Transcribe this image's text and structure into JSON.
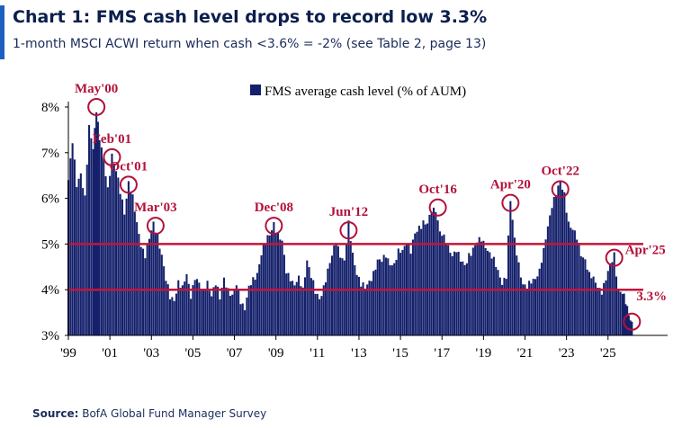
{
  "header": {
    "title": "Chart 1: FMS cash level drops to record low 3.3%",
    "subtitle": "1-month MSCI ACWI return when cash <3.6% = -2% (see Table 2, page 13)"
  },
  "footer": {
    "source_label": "Source:",
    "source_text": "BofA Global Fund Manager Survey"
  },
  "colors": {
    "bars": "#14206b",
    "threshold": "#c4143c",
    "annotation": "#b2123a",
    "accent": "#1f5fbf"
  },
  "chart_data": {
    "type": "bar",
    "legend": "FMS average cash level (% of AUM)",
    "legend_position": "top-center",
    "grid": false,
    "ylim": [
      3,
      8.5
    ],
    "y_ticks": [
      {
        "value": 3,
        "label": "3%"
      },
      {
        "value": 4,
        "label": "4%"
      },
      {
        "value": 5,
        "label": "5%"
      },
      {
        "value": 6,
        "label": "6%"
      },
      {
        "value": 7,
        "label": "7%"
      },
      {
        "value": 8,
        "label": "8%"
      }
    ],
    "xlim": [
      1999.0,
      2026.7
    ],
    "x_ticks": [
      {
        "value": 1999,
        "label": "'99"
      },
      {
        "value": 2001,
        "label": "'01"
      },
      {
        "value": 2003,
        "label": "'03"
      },
      {
        "value": 2005,
        "label": "'05"
      },
      {
        "value": 2007,
        "label": "'07"
      },
      {
        "value": 2009,
        "label": "'09"
      },
      {
        "value": 2011,
        "label": "'11"
      },
      {
        "value": 2013,
        "label": "'13"
      },
      {
        "value": 2015,
        "label": "'15"
      },
      {
        "value": 2017,
        "label": "'17"
      },
      {
        "value": 2019,
        "label": "'19"
      },
      {
        "value": 2021,
        "label": "'21"
      },
      {
        "value": 2023,
        "label": "'23"
      },
      {
        "value": 2025,
        "label": "'25"
      }
    ],
    "reference_lines": [
      5.0,
      4.0
    ],
    "series": [
      {
        "points": [
          [
            1999.0,
            6.4
          ],
          [
            1999.2,
            7.2
          ],
          [
            1999.4,
            6.3
          ],
          [
            1999.6,
            6.6
          ],
          [
            1999.8,
            6.0
          ],
          [
            2000.0,
            7.5
          ],
          [
            2000.2,
            7.1
          ],
          [
            2000.35,
            8.0
          ],
          [
            2000.5,
            7.3
          ],
          [
            2000.7,
            6.8
          ],
          [
            2000.9,
            6.2
          ],
          [
            2001.1,
            7.0
          ],
          [
            2001.3,
            6.6
          ],
          [
            2001.5,
            6.1
          ],
          [
            2001.7,
            5.7
          ],
          [
            2001.9,
            6.4
          ],
          [
            2002.1,
            6.0
          ],
          [
            2002.3,
            5.4
          ],
          [
            2002.5,
            5.0
          ],
          [
            2002.7,
            4.8
          ],
          [
            2002.9,
            5.1
          ],
          [
            2003.1,
            5.4
          ],
          [
            2003.3,
            5.2
          ],
          [
            2003.5,
            4.8
          ],
          [
            2003.7,
            4.2
          ],
          [
            2003.9,
            3.8
          ],
          [
            2004.1,
            3.8
          ],
          [
            2004.3,
            4.2
          ],
          [
            2004.5,
            4.0
          ],
          [
            2004.7,
            4.3
          ],
          [
            2004.9,
            3.9
          ],
          [
            2005.1,
            4.3
          ],
          [
            2005.3,
            4.1
          ],
          [
            2005.5,
            3.9
          ],
          [
            2005.7,
            4.2
          ],
          [
            2005.9,
            3.9
          ],
          [
            2006.1,
            4.1
          ],
          [
            2006.3,
            3.8
          ],
          [
            2006.5,
            4.3
          ],
          [
            2006.7,
            4.0
          ],
          [
            2006.9,
            3.8
          ],
          [
            2007.1,
            4.1
          ],
          [
            2007.3,
            3.8
          ],
          [
            2007.5,
            3.6
          ],
          [
            2007.7,
            4.0
          ],
          [
            2007.9,
            4.2
          ],
          [
            2008.1,
            4.4
          ],
          [
            2008.3,
            4.8
          ],
          [
            2008.5,
            5.0
          ],
          [
            2008.7,
            5.2
          ],
          [
            2008.9,
            5.5
          ],
          [
            2009.1,
            5.2
          ],
          [
            2009.3,
            5.0
          ],
          [
            2009.5,
            4.4
          ],
          [
            2009.7,
            4.3
          ],
          [
            2009.9,
            4.1
          ],
          [
            2010.1,
            4.2
          ],
          [
            2010.3,
            4.0
          ],
          [
            2010.5,
            4.7
          ],
          [
            2010.7,
            4.3
          ],
          [
            2010.9,
            3.9
          ],
          [
            2011.1,
            3.8
          ],
          [
            2011.3,
            4.1
          ],
          [
            2011.5,
            4.4
          ],
          [
            2011.7,
            4.7
          ],
          [
            2011.9,
            5.1
          ],
          [
            2012.1,
            4.8
          ],
          [
            2012.3,
            4.6
          ],
          [
            2012.5,
            5.4
          ],
          [
            2012.7,
            4.8
          ],
          [
            2012.9,
            4.4
          ],
          [
            2013.1,
            4.1
          ],
          [
            2013.3,
            4.0
          ],
          [
            2013.5,
            4.2
          ],
          [
            2013.7,
            4.4
          ],
          [
            2013.9,
            4.6
          ],
          [
            2014.1,
            4.6
          ],
          [
            2014.3,
            4.8
          ],
          [
            2014.5,
            4.6
          ],
          [
            2014.7,
            4.5
          ],
          [
            2014.9,
            4.8
          ],
          [
            2015.1,
            4.9
          ],
          [
            2015.3,
            5.1
          ],
          [
            2015.5,
            4.8
          ],
          [
            2015.7,
            5.2
          ],
          [
            2015.9,
            5.4
          ],
          [
            2016.1,
            5.5
          ],
          [
            2016.3,
            5.4
          ],
          [
            2016.5,
            5.7
          ],
          [
            2016.7,
            5.8
          ],
          [
            2016.9,
            5.3
          ],
          [
            2017.1,
            5.1
          ],
          [
            2017.3,
            4.9
          ],
          [
            2017.5,
            4.8
          ],
          [
            2017.7,
            4.9
          ],
          [
            2017.9,
            4.6
          ],
          [
            2018.1,
            4.5
          ],
          [
            2018.3,
            4.8
          ],
          [
            2018.5,
            4.9
          ],
          [
            2018.7,
            5.0
          ],
          [
            2018.9,
            5.1
          ],
          [
            2019.1,
            5.0
          ],
          [
            2019.3,
            4.8
          ],
          [
            2019.5,
            4.6
          ],
          [
            2019.7,
            4.4
          ],
          [
            2019.9,
            4.2
          ],
          [
            2020.1,
            4.3
          ],
          [
            2020.3,
            5.9
          ],
          [
            2020.5,
            5.1
          ],
          [
            2020.7,
            4.6
          ],
          [
            2020.9,
            4.1
          ],
          [
            2021.1,
            4.0
          ],
          [
            2021.3,
            4.2
          ],
          [
            2021.5,
            4.3
          ],
          [
            2021.7,
            4.4
          ],
          [
            2021.9,
            4.8
          ],
          [
            2022.1,
            5.4
          ],
          [
            2022.3,
            5.9
          ],
          [
            2022.5,
            6.1
          ],
          [
            2022.7,
            6.3
          ],
          [
            2022.9,
            6.1
          ],
          [
            2023.1,
            5.5
          ],
          [
            2023.3,
            5.3
          ],
          [
            2023.5,
            5.1
          ],
          [
            2023.7,
            4.8
          ],
          [
            2023.9,
            4.7
          ],
          [
            2024.1,
            4.3
          ],
          [
            2024.3,
            4.2
          ],
          [
            2024.5,
            4.1
          ],
          [
            2024.7,
            4.0
          ],
          [
            2024.9,
            4.2
          ],
          [
            2025.1,
            4.5
          ],
          [
            2025.3,
            4.8
          ],
          [
            2025.5,
            4.0
          ],
          [
            2025.7,
            3.9
          ],
          [
            2025.85,
            3.7
          ],
          [
            2026.0,
            3.5
          ],
          [
            2026.15,
            3.3
          ]
        ]
      }
    ],
    "annotations": [
      {
        "label": "May'00",
        "x": 2000.35,
        "y": 8.0,
        "label_side": "above"
      },
      {
        "label": "Feb'01",
        "x": 2001.1,
        "y": 6.9,
        "label_side": "above"
      },
      {
        "label": "Oct'01",
        "x": 2001.9,
        "y": 6.3,
        "label_side": "above"
      },
      {
        "label": "Mar'03",
        "x": 2003.2,
        "y": 5.4,
        "label_side": "above"
      },
      {
        "label": "Dec'08",
        "x": 2008.9,
        "y": 5.4,
        "label_side": "above"
      },
      {
        "label": "Jun'12",
        "x": 2012.5,
        "y": 5.3,
        "label_side": "above"
      },
      {
        "label": "Oct'16",
        "x": 2016.8,
        "y": 5.8,
        "label_side": "above"
      },
      {
        "label": "Apr'20",
        "x": 2020.3,
        "y": 5.9,
        "label_side": "above"
      },
      {
        "label": "Oct'22",
        "x": 2022.7,
        "y": 6.2,
        "label_side": "above"
      },
      {
        "label": "Apr'25",
        "x": 2025.3,
        "y": 4.7,
        "label_side": "right"
      },
      {
        "label": "3.3%",
        "x": 2026.15,
        "y": 3.3,
        "label_side": "above-right"
      }
    ]
  }
}
